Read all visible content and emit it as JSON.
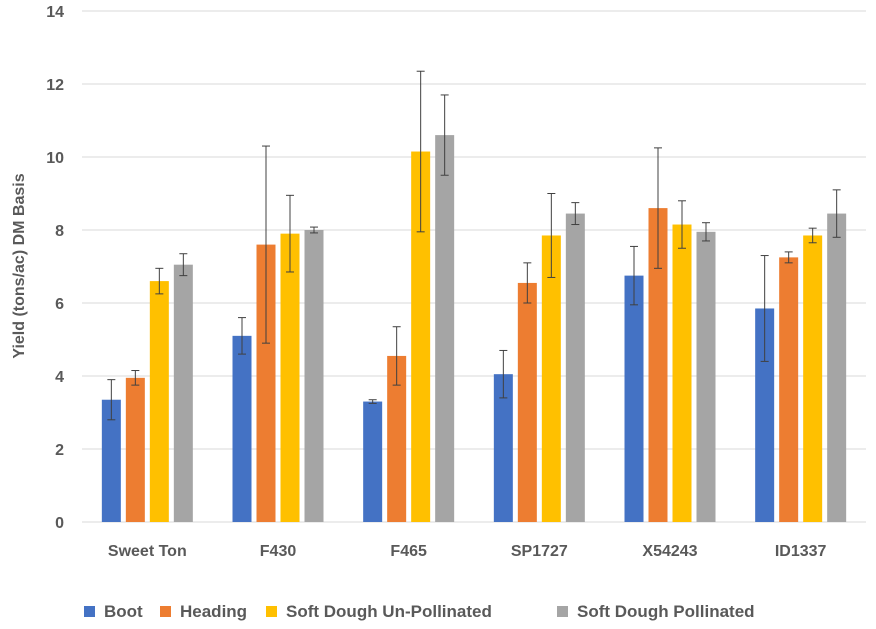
{
  "chart_data": {
    "type": "bar",
    "title": "",
    "xlabel": "",
    "ylabel": "Yield (tons/ac) DM Basis",
    "ylim": [
      0,
      14
    ],
    "yticks": [
      0,
      2,
      4,
      6,
      8,
      10,
      12,
      14
    ],
    "grid": true,
    "legend_position": "bottom",
    "categories": [
      "Sweet Ton",
      "F430",
      "F465",
      "SP1727",
      "X54243",
      "ID1337"
    ],
    "series": [
      {
        "name": "Boot",
        "color": "#4472C4",
        "values": [
          3.35,
          5.1,
          3.3,
          4.05,
          6.75,
          5.85
        ],
        "error": [
          0.55,
          0.5,
          0.05,
          0.65,
          0.8,
          1.45
        ]
      },
      {
        "name": "Heading",
        "color": "#ED7D31",
        "values": [
          3.95,
          7.6,
          4.55,
          6.55,
          8.6,
          7.25
        ],
        "error": [
          0.2,
          2.7,
          0.8,
          0.55,
          1.65,
          0.15
        ]
      },
      {
        "name": "Soft Dough Un-Pollinated",
        "color": "#FFC000",
        "values": [
          6.6,
          7.9,
          10.15,
          7.85,
          8.15,
          7.85
        ],
        "error": [
          0.35,
          1.05,
          2.2,
          1.15,
          0.65,
          0.2
        ]
      },
      {
        "name": "Soft Dough Pollinated",
        "color": "#A5A5A5",
        "values": [
          7.05,
          8.0,
          10.6,
          8.45,
          7.95,
          8.45
        ],
        "error": [
          0.3,
          0.08,
          1.1,
          0.3,
          0.25,
          0.65
        ]
      }
    ]
  }
}
